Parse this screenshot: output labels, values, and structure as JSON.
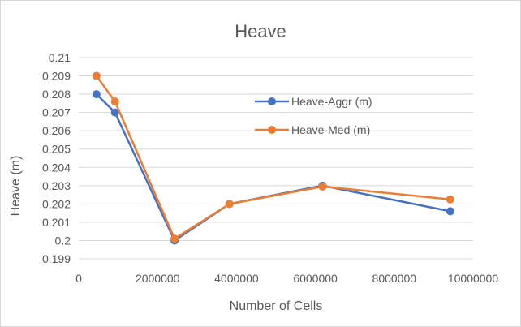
{
  "chart_data": {
    "type": "line",
    "title": "Heave",
    "xlabel": "Number of Cells",
    "ylabel": "Heave (m)",
    "xlim": [
      0,
      10000000
    ],
    "ylim": [
      0.199,
      0.21
    ],
    "x_ticks": [
      "0",
      "2000000",
      "4000000",
      "6000000",
      "8000000",
      "10000000"
    ],
    "y_ticks": [
      "0.199",
      "0.2",
      "0.201",
      "0.202",
      "0.203",
      "0.204",
      "0.205",
      "0.206",
      "0.207",
      "0.208",
      "0.209",
      "0.21"
    ],
    "grid": "horizontal",
    "legend_position": "right",
    "series": [
      {
        "name": "Heave-Aggr (m)",
        "color": "#4472C4",
        "x": [
          450000,
          920000,
          2430000,
          3820000,
          6180000,
          9420000
        ],
        "y": [
          0.208,
          0.207,
          0.2,
          0.202,
          0.203,
          0.2016
        ]
      },
      {
        "name": "Heave-Med (m)",
        "color": "#ED7D31",
        "x": [
          450000,
          920000,
          2430000,
          3820000,
          6180000,
          9420000
        ],
        "y": [
          0.209,
          0.2076,
          0.2001,
          0.202,
          0.20295,
          0.20225
        ]
      }
    ]
  }
}
